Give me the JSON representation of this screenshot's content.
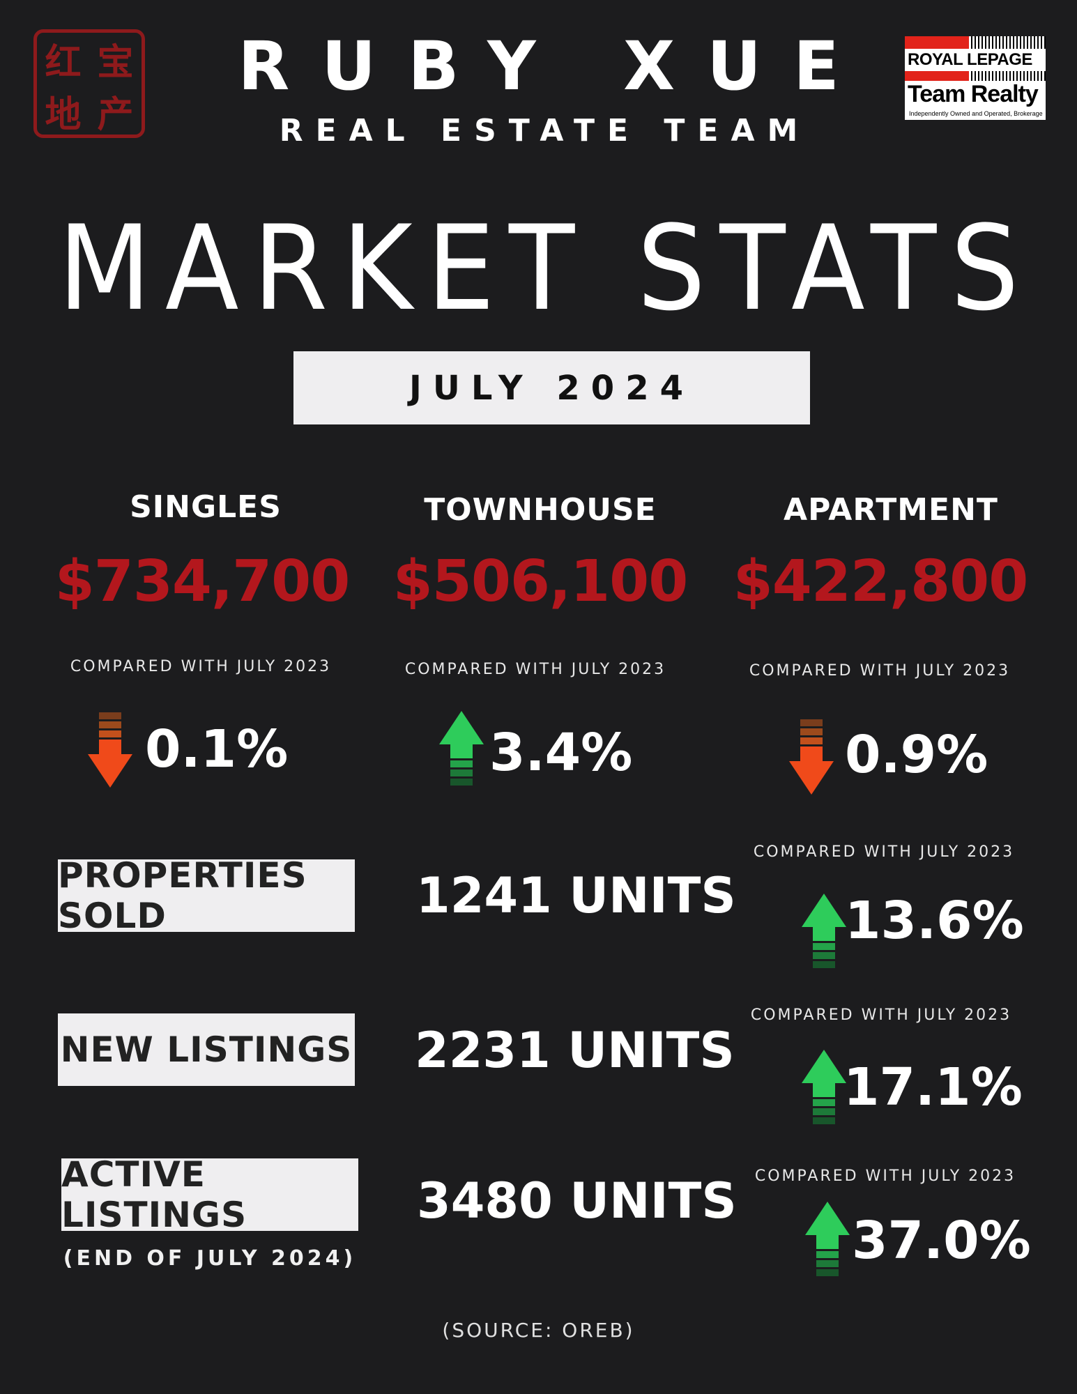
{
  "seal": {
    "chars": [
      "红",
      "宝",
      "地",
      "产"
    ]
  },
  "header": {
    "name": "RUBY XUE",
    "subtitle": "REAL ESTATE TEAM",
    "logo": {
      "line1": "ROYAL LEPAGE",
      "line2": "Team Realty",
      "line3": "Independently Owned and Operated, Brokerage"
    }
  },
  "title": "MARKET STATS",
  "period": "JULY 2024",
  "colors": {
    "background": "#1c1c1e",
    "price_red": "#b3171d",
    "up_green": "#2ecc5b",
    "down_orange": "#f04a1a"
  },
  "categories": [
    {
      "label": "SINGLES",
      "price": "$734,700",
      "compare": "COMPARED WITH JULY 2023",
      "change": "0.1%",
      "direction": "down",
      "icon": "down-arrow-icon"
    },
    {
      "label": "TOWNHOUSE",
      "price": "$506,100",
      "compare": "COMPARED WITH JULY 2023",
      "change": "3.4%",
      "direction": "up",
      "icon": "up-arrow-icon"
    },
    {
      "label": "APARTMENT",
      "price": "$422,800",
      "compare": "COMPARED WITH JULY 2023",
      "change": "0.9%",
      "direction": "down",
      "icon": "down-arrow-icon"
    }
  ],
  "metrics": [
    {
      "label": "PROPERTIES SOLD",
      "units": "1241 UNITS",
      "compare": "COMPARED WITH JULY 2023",
      "change": "13.6%",
      "direction": "up"
    },
    {
      "label": "NEW LISTINGS",
      "units": "2231 UNITS",
      "compare": "COMPARED WITH JULY 2023",
      "change": "17.1%",
      "direction": "up"
    },
    {
      "label": "ACTIVE LISTINGS",
      "note": "(END OF JULY 2024)",
      "units": "3480 UNITS",
      "compare": "COMPARED WITH JULY 2023",
      "change": "37.0%",
      "direction": "up"
    }
  ],
  "source": "(SOURCE: OREB)"
}
